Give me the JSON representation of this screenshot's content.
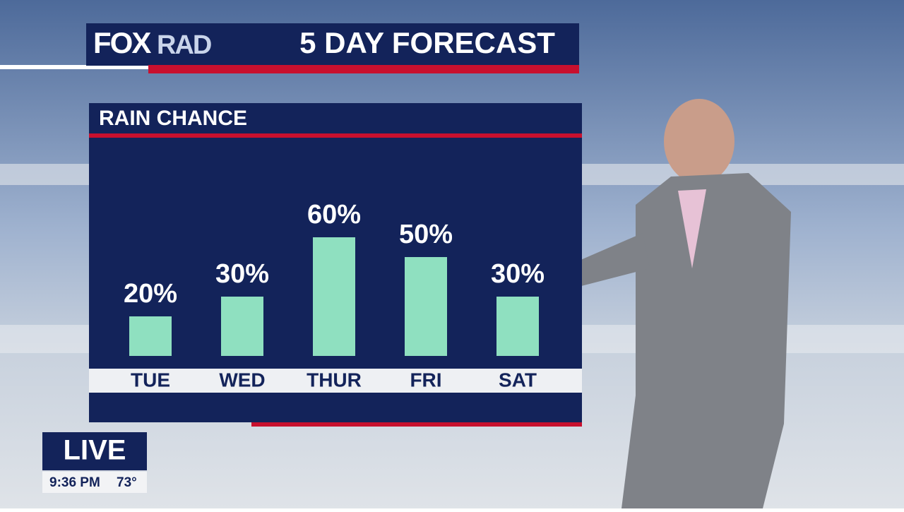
{
  "logo": {
    "fox": "FOX",
    "rad": "RAD"
  },
  "header": "5 DAY FORECAST",
  "live": {
    "label": "LIVE",
    "time": "9:36 PM",
    "temp": "73°"
  },
  "chart_data": {
    "type": "bar",
    "title": "RAIN CHANCE",
    "categories": [
      "TUE",
      "WED",
      "THUR",
      "FRI",
      "SAT"
    ],
    "values": [
      20,
      30,
      60,
      50,
      30
    ],
    "value_labels": [
      "20%",
      "30%",
      "60%",
      "50%",
      "30%"
    ],
    "color": "#8fe0c0"
  }
}
